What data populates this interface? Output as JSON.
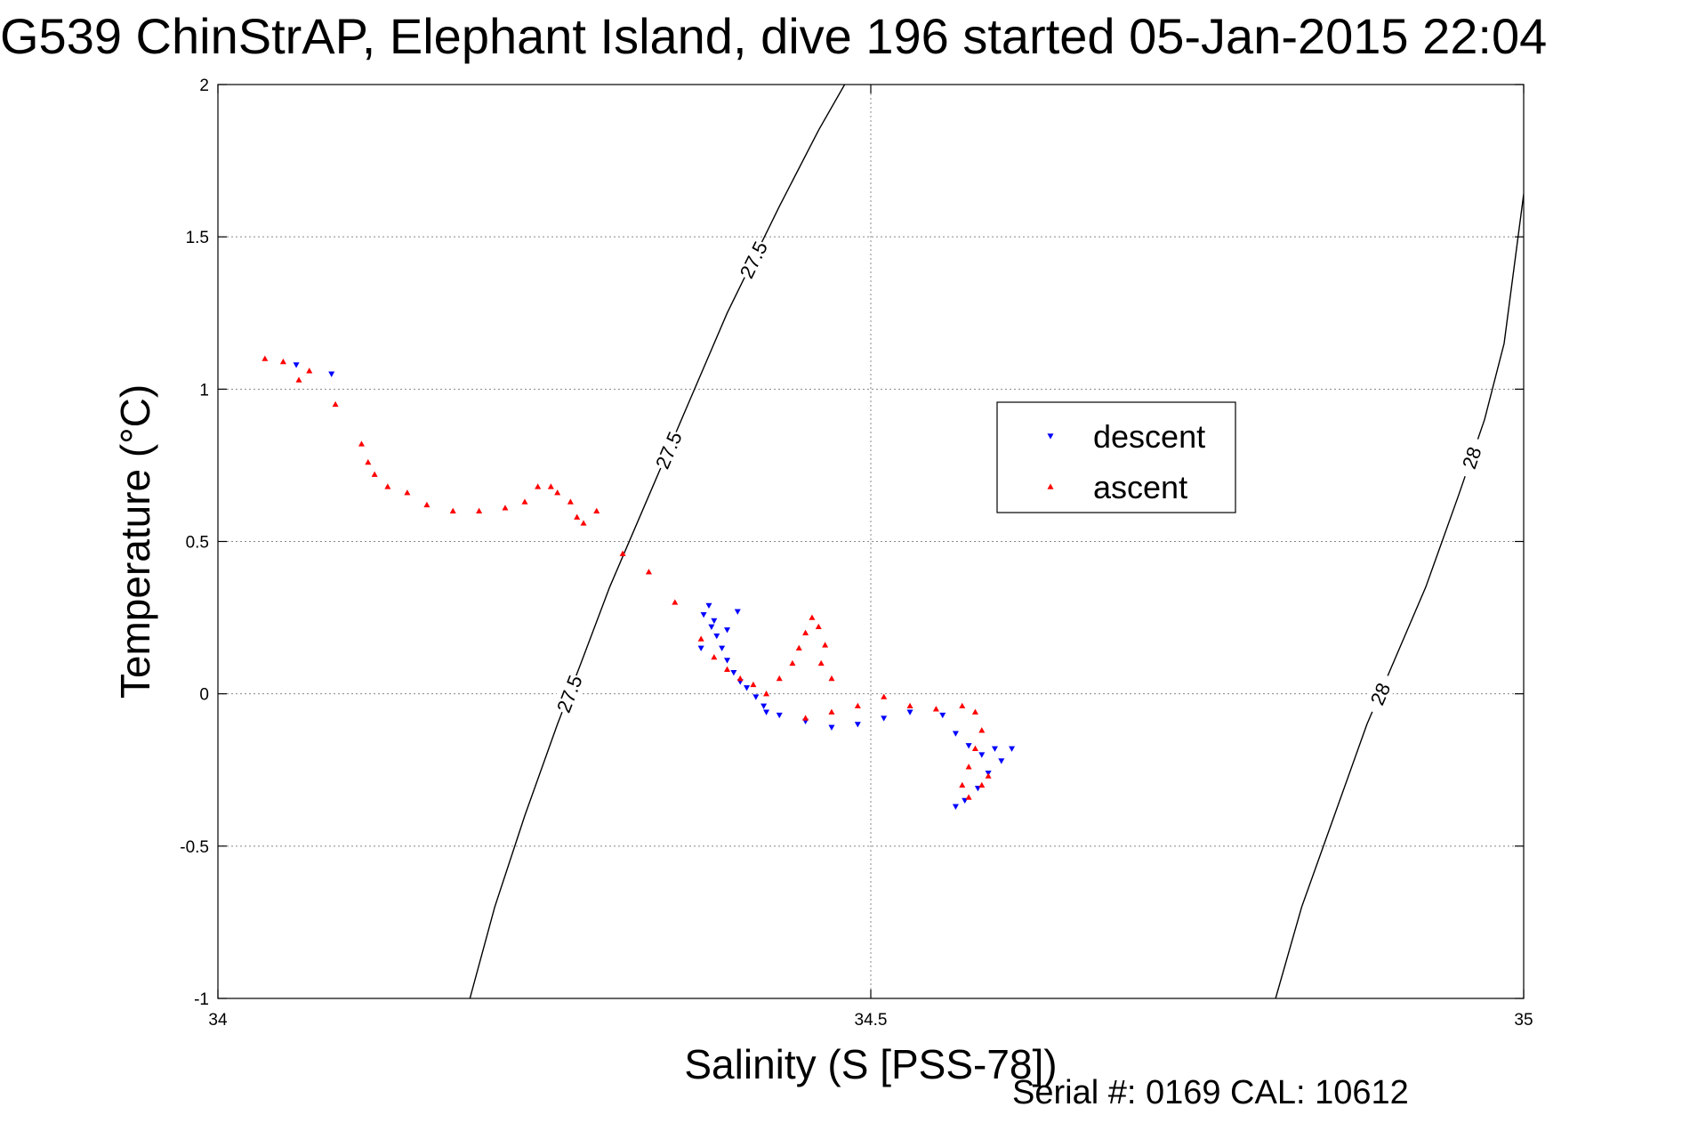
{
  "chart_data": {
    "type": "scatter",
    "title": "G539 ChinStrAP, Elephant Island, dive 196 started 05-Jan-2015 22:04",
    "xlabel": "Salinity (S [PSS-78])",
    "ylabel": "Temperature (°C)",
    "footer": "Serial #: 0169 CAL: 10612",
    "xlim": [
      34,
      35
    ],
    "ylim": [
      -1,
      2
    ],
    "xticks": [
      34,
      34.5,
      35
    ],
    "xtick_labels": [
      "34",
      "34.5",
      "35"
    ],
    "yticks": [
      -1,
      -0.5,
      0,
      0.5,
      1,
      1.5,
      2
    ],
    "ytick_labels": [
      "-1",
      "-0.5",
      "0",
      "0.5",
      "1",
      "1.5",
      "2"
    ],
    "grid": true,
    "legend_position": "upper-center-right",
    "contours": [
      {
        "level": "27.5",
        "labels": [
          "27.5",
          "27.5",
          "27.5"
        ],
        "points": [
          [
            34.193,
            -1
          ],
          [
            34.212,
            -0.7
          ],
          [
            34.235,
            -0.4
          ],
          [
            34.26,
            -0.1
          ],
          [
            34.278,
            0.1
          ],
          [
            34.3,
            0.35
          ],
          [
            34.33,
            0.65
          ],
          [
            34.36,
            0.95
          ],
          [
            34.39,
            1.25
          ],
          [
            34.43,
            1.6
          ],
          [
            34.46,
            1.85
          ],
          [
            34.48,
            2
          ]
        ]
      },
      {
        "level": "28",
        "labels": [
          "28",
          "28"
        ],
        "points": [
          [
            34.81,
            -1
          ],
          [
            34.83,
            -0.7
          ],
          [
            34.855,
            -0.4
          ],
          [
            34.88,
            -0.1
          ],
          [
            34.9,
            0.1
          ],
          [
            34.925,
            0.35
          ],
          [
            34.95,
            0.65
          ],
          [
            34.97,
            0.9
          ],
          [
            34.985,
            1.15
          ],
          [
            35,
            1.64
          ]
        ]
      }
    ],
    "series": [
      {
        "name": "descent",
        "color": "#0000ff",
        "marker": "triangle-down",
        "points": [
          [
            34.06,
            1.08
          ],
          [
            34.087,
            1.05
          ],
          [
            34.376,
            0.29
          ],
          [
            34.372,
            0.26
          ],
          [
            34.378,
            0.22
          ],
          [
            34.382,
            0.19
          ],
          [
            34.386,
            0.15
          ],
          [
            34.39,
            0.11
          ],
          [
            34.395,
            0.07
          ],
          [
            34.4,
            0.04
          ],
          [
            34.405,
            0.02
          ],
          [
            34.412,
            -0.01
          ],
          [
            34.418,
            -0.04
          ],
          [
            34.42,
            -0.06
          ],
          [
            34.43,
            -0.07
          ],
          [
            34.45,
            -0.09
          ],
          [
            34.47,
            -0.11
          ],
          [
            34.49,
            -0.1
          ],
          [
            34.51,
            -0.08
          ],
          [
            34.53,
            -0.06
          ],
          [
            34.555,
            -0.07
          ],
          [
            34.565,
            -0.13
          ],
          [
            34.575,
            -0.17
          ],
          [
            34.585,
            -0.2
          ],
          [
            34.595,
            -0.18
          ],
          [
            34.6,
            -0.22
          ],
          [
            34.59,
            -0.26
          ],
          [
            34.582,
            -0.31
          ],
          [
            34.572,
            -0.35
          ],
          [
            34.565,
            -0.37
          ],
          [
            34.608,
            -0.18
          ],
          [
            34.38,
            0.24
          ],
          [
            34.39,
            0.21
          ],
          [
            34.37,
            0.15
          ],
          [
            34.398,
            0.27
          ]
        ]
      },
      {
        "name": "ascent",
        "color": "#ff0000",
        "marker": "triangle-up",
        "points": [
          [
            34.036,
            1.1
          ],
          [
            34.05,
            1.09
          ],
          [
            34.062,
            1.03
          ],
          [
            34.07,
            1.06
          ],
          [
            34.09,
            0.95
          ],
          [
            34.11,
            0.82
          ],
          [
            34.115,
            0.76
          ],
          [
            34.12,
            0.72
          ],
          [
            34.13,
            0.68
          ],
          [
            34.145,
            0.66
          ],
          [
            34.16,
            0.62
          ],
          [
            34.18,
            0.6
          ],
          [
            34.2,
            0.6
          ],
          [
            34.22,
            0.61
          ],
          [
            34.235,
            0.63
          ],
          [
            34.245,
            0.68
          ],
          [
            34.255,
            0.68
          ],
          [
            34.26,
            0.66
          ],
          [
            34.27,
            0.63
          ],
          [
            34.275,
            0.58
          ],
          [
            34.28,
            0.56
          ],
          [
            34.29,
            0.6
          ],
          [
            34.31,
            0.46
          ],
          [
            34.33,
            0.4
          ],
          [
            34.35,
            0.3
          ],
          [
            34.37,
            0.18
          ],
          [
            34.38,
            0.12
          ],
          [
            34.39,
            0.08
          ],
          [
            34.4,
            0.05
          ],
          [
            34.41,
            0.03
          ],
          [
            34.42,
            0
          ],
          [
            34.43,
            0.05
          ],
          [
            34.44,
            0.1
          ],
          [
            34.445,
            0.15
          ],
          [
            34.45,
            0.2
          ],
          [
            34.455,
            0.25
          ],
          [
            34.46,
            0.22
          ],
          [
            34.465,
            0.16
          ],
          [
            34.462,
            0.1
          ],
          [
            34.47,
            0.05
          ],
          [
            34.45,
            -0.08
          ],
          [
            34.47,
            -0.06
          ],
          [
            34.49,
            -0.04
          ],
          [
            34.51,
            -0.01
          ],
          [
            34.53,
            -0.04
          ],
          [
            34.55,
            -0.05
          ],
          [
            34.57,
            -0.04
          ],
          [
            34.58,
            -0.06
          ],
          [
            34.585,
            -0.12
          ],
          [
            34.58,
            -0.18
          ],
          [
            34.575,
            -0.24
          ],
          [
            34.57,
            -0.3
          ],
          [
            34.575,
            -0.34
          ],
          [
            34.585,
            -0.3
          ],
          [
            34.59,
            -0.27
          ]
        ]
      }
    ]
  }
}
